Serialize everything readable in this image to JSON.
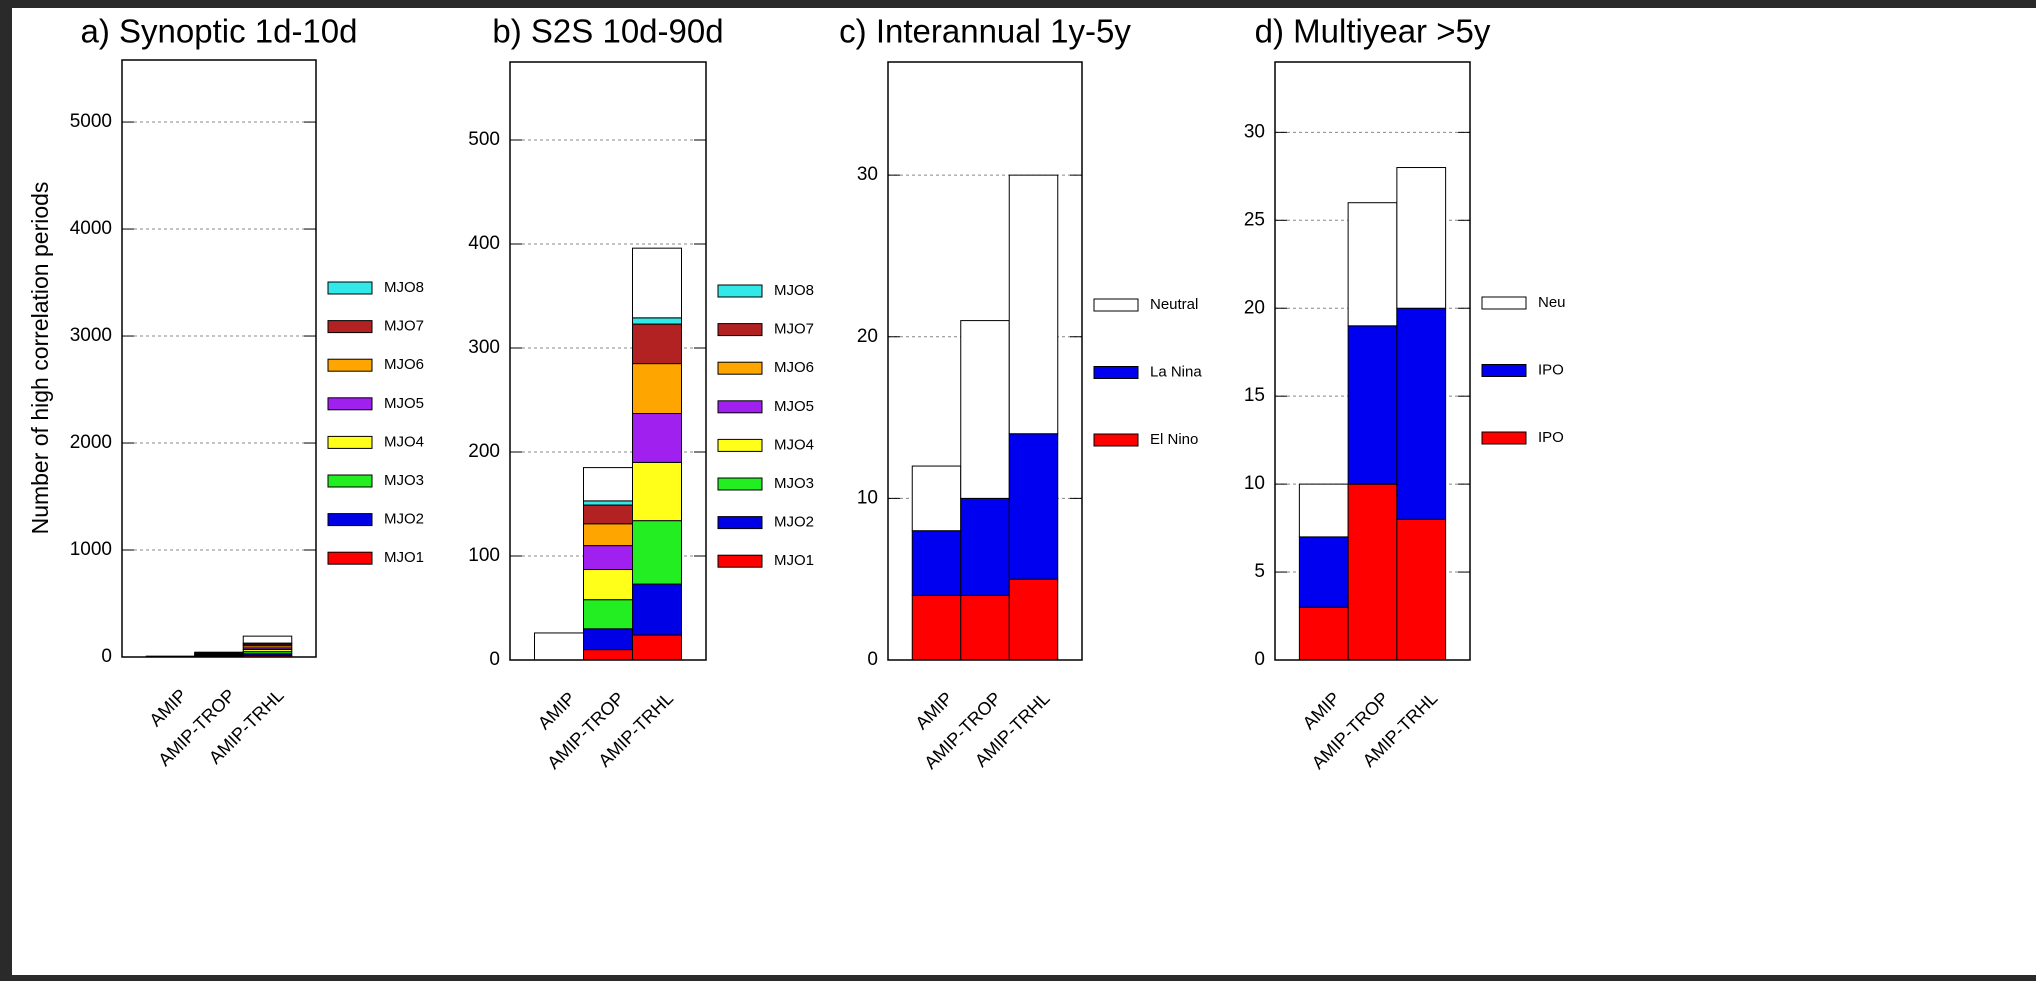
{
  "chart_data": [
    {
      "type": "bar",
      "stacked": true,
      "title": "a) Synoptic 1d-10d",
      "y_label": "Number of high correlation periods",
      "categories": [
        "AMIP",
        "AMIP-TROP",
        "AMIP-TRHL"
      ],
      "series": [
        {
          "name": "MJO1",
          "color": "#ff0000",
          "values": [
            0,
            5,
            15
          ]
        },
        {
          "name": "MJO2",
          "color": "#0000e6",
          "values": [
            0,
            5,
            15
          ]
        },
        {
          "name": "MJO3",
          "color": "#22ee22",
          "values": [
            0,
            5,
            20
          ]
        },
        {
          "name": "MJO4",
          "color": "#ffff1a",
          "values": [
            0,
            5,
            20
          ]
        },
        {
          "name": "MJO5",
          "color": "#a020f0",
          "values": [
            0,
            5,
            15
          ]
        },
        {
          "name": "MJO6",
          "color": "#ffa500",
          "values": [
            0,
            5,
            20
          ]
        },
        {
          "name": "MJO7",
          "color": "#b22222",
          "values": [
            0,
            5,
            15
          ]
        },
        {
          "name": "MJO8",
          "color": "#33e8e8",
          "values": [
            0,
            2,
            10
          ]
        },
        {
          "color": "#ffffff",
          "values": [
            8,
            8,
            65
          ]
        }
      ],
      "ylim": [
        0,
        5580
      ],
      "yticks": [
        0,
        1000,
        2000,
        3000,
        4000,
        5000
      ],
      "grid": true
    },
    {
      "type": "bar",
      "stacked": true,
      "title": "b) S2S 10d-90d",
      "categories": [
        "AMIP",
        "AMIP-TROP",
        "AMIP-TRHL"
      ],
      "series": [
        {
          "name": "MJO1",
          "color": "#ff0000",
          "values": [
            0,
            10,
            24
          ]
        },
        {
          "name": "MJO2",
          "color": "#0000e6",
          "values": [
            0,
            20,
            49
          ]
        },
        {
          "name": "MJO3",
          "color": "#22ee22",
          "values": [
            0,
            28,
            61
          ]
        },
        {
          "name": "MJO4",
          "color": "#ffff1a",
          "values": [
            0,
            29,
            56
          ]
        },
        {
          "name": "MJO5",
          "color": "#a020f0",
          "values": [
            0,
            23,
            47
          ]
        },
        {
          "name": "MJO6",
          "color": "#ffa500",
          "values": [
            0,
            21,
            48
          ]
        },
        {
          "name": "MJO7",
          "color": "#b22222",
          "values": [
            0,
            18,
            38
          ]
        },
        {
          "name": "MJO8",
          "color": "#33e8e8",
          "values": [
            0,
            4,
            6
          ]
        },
        {
          "color": "#ffffff",
          "values": [
            26,
            32,
            67
          ]
        }
      ],
      "ylim": [
        0,
        575
      ],
      "yticks": [
        0,
        100,
        200,
        300,
        400,
        500
      ],
      "grid": true
    },
    {
      "type": "bar",
      "stacked": true,
      "title": "c) Interannual 1y-5y",
      "categories": [
        "AMIP",
        "AMIP-TROP",
        "AMIP-TRHL"
      ],
      "series": [
        {
          "name": "El Nino",
          "color": "#ff0000",
          "values": [
            4,
            4,
            5
          ]
        },
        {
          "name": "La Nina",
          "color": "#0000f0",
          "values": [
            4,
            6,
            9
          ]
        },
        {
          "name": "Neutral",
          "color": "#ffffff",
          "values": [
            4,
            11,
            16
          ]
        }
      ],
      "ylim": [
        0,
        37
      ],
      "yticks": [
        0,
        10,
        20,
        30
      ],
      "grid": true
    },
    {
      "type": "bar",
      "stacked": true,
      "title": "d) Multiyear >5y",
      "categories": [
        "AMIP",
        "AMIP-TROP",
        "AMIP-TRHL"
      ],
      "series": [
        {
          "name": "IPO",
          "color": "#ff0000",
          "values": [
            3,
            10,
            8
          ]
        },
        {
          "name": "IPO",
          "color": "#0000f0",
          "values": [
            4,
            9,
            12
          ]
        },
        {
          "name": "Neu",
          "color": "#ffffff",
          "values": [
            3,
            7,
            8
          ]
        }
      ],
      "ylim": [
        0,
        34
      ],
      "yticks": [
        0,
        5,
        10,
        15,
        20,
        25,
        30
      ],
      "grid": true
    }
  ]
}
